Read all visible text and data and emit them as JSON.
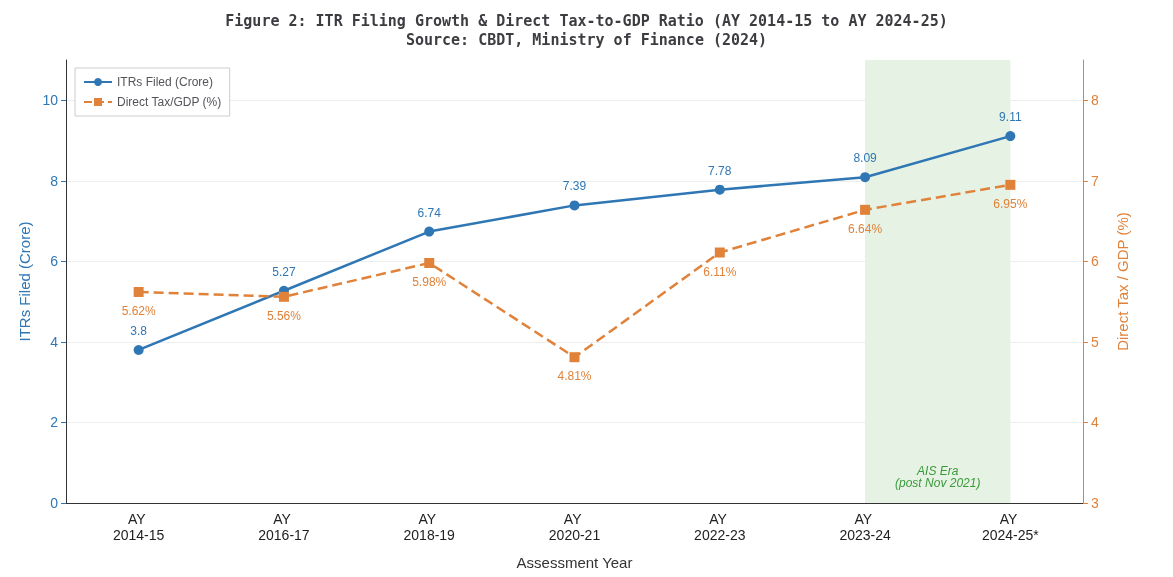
{
  "chart_data": {
    "type": "line",
    "title": "Figure 2: ITR Filing Growth & Direct Tax-to-GDP Ratio (AY 2014-15 to AY 2024-25)",
    "subtitle": "Source: CBDT, Ministry of Finance (2024)",
    "xlabel": "Assessment Year",
    "ylabel": "ITRs Filed (Crore)",
    "y2label": "Direct Tax / GDP (%)",
    "categories": [
      "AY 2014-15",
      "AY 2016-17",
      "AY 2018-19",
      "AY 2020-21",
      "AY 2022-23",
      "AY 2023-24",
      "AY 2024-25*"
    ],
    "series": [
      {
        "name": "ITRs Filed (Crore)",
        "color": "#2f77b4",
        "values": [
          3.8,
          5.27,
          6.74,
          7.39,
          7.78,
          8.09,
          9.11
        ],
        "marker": "circle",
        "line_style": "solid",
        "value_labels": [
          "3.8",
          "5.27",
          "6.74",
          "7.39",
          "7.78",
          "8.09",
          "9.11"
        ]
      },
      {
        "name": "Direct Tax/GDP (%)",
        "color": "#e0823a",
        "values": [
          5.62,
          5.56,
          5.98,
          4.81,
          6.11,
          6.64,
          6.95
        ],
        "marker": "square",
        "line_style": "dashed",
        "axis": "y2",
        "value_labels": [
          "5.62%",
          "5.56%",
          "5.98%",
          "4.81%",
          "6.11%",
          "6.64%",
          "6.95%"
        ]
      }
    ],
    "ylim": [
      0,
      11
    ],
    "yticks": [
      0,
      2,
      4,
      6,
      8,
      10
    ],
    "y2lim": [
      3,
      8.5
    ],
    "y2ticks": [
      3,
      4,
      5,
      6,
      7,
      8
    ],
    "bands": [
      {
        "axis": "x",
        "from": "AY 2023-24",
        "to": "AY 2024-25*",
        "color": "#e6f2e4",
        "label": "AIS Era\n(post Nov 2021)"
      }
    ],
    "grid": "y",
    "legend": "top left"
  }
}
